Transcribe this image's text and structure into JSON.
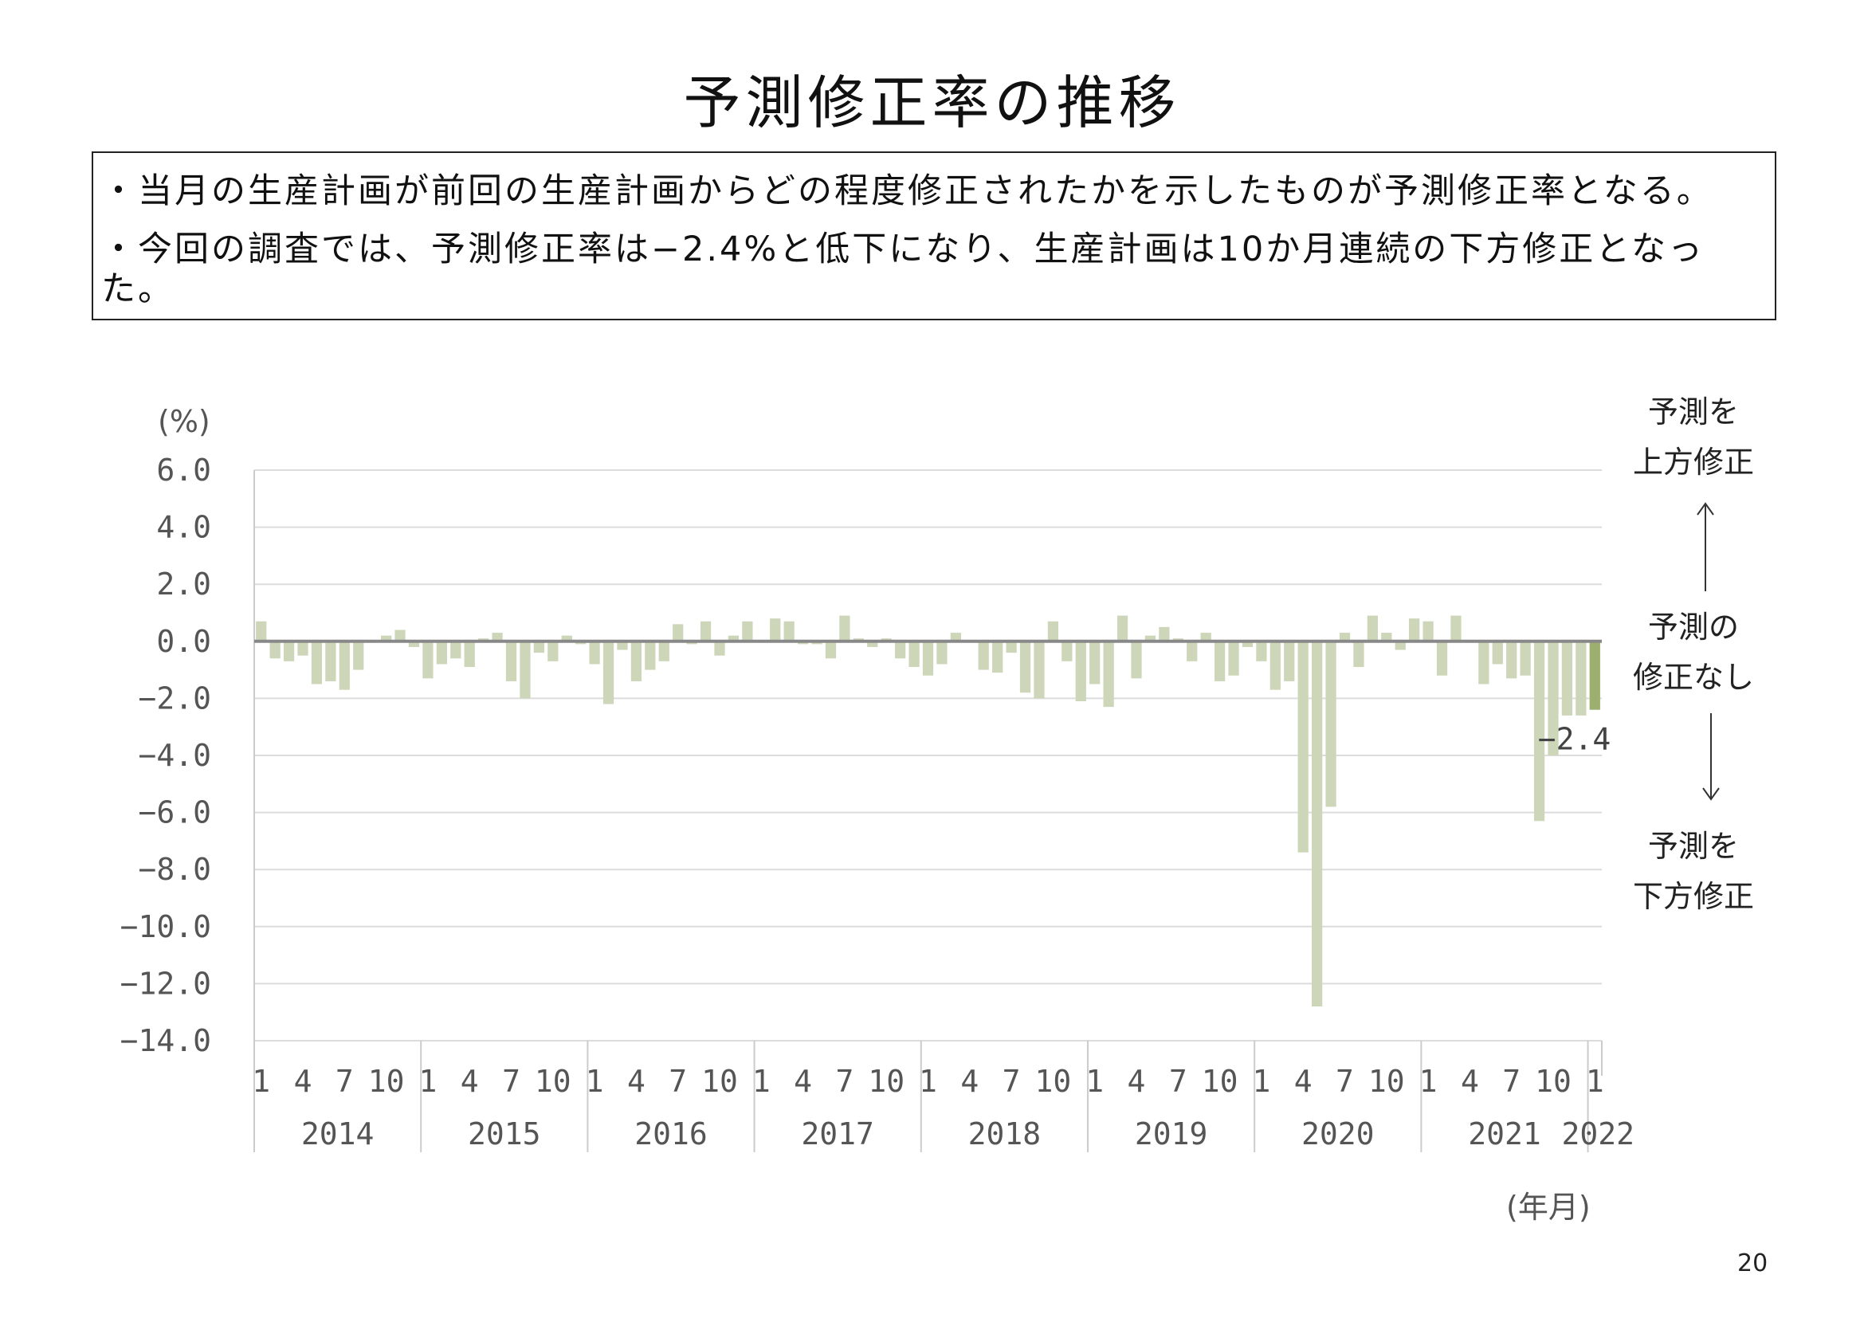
{
  "slide": {
    "title": "予測修正率の推移",
    "notes": [
      "・当月の生産計画が前回の生産計画からどの程度修正されたかを示したものが予測修正率となる。",
      "・今回の調査では、予測修正率は−2.4%と低下になり、生産計画は10か月連続の下方修正となった。"
    ],
    "page_number": "20"
  },
  "annotations": {
    "up": [
      "予測を",
      "上方修正"
    ],
    "none": [
      "予測の",
      "修正なし"
    ],
    "down": [
      "予測を",
      "下方修正"
    ],
    "up_arrow": "arrow-up-icon",
    "down_arrow": "arrow-down-icon"
  },
  "chart_data": {
    "type": "bar",
    "y_unit_label": "(%)",
    "x_unit_label": "(年月)",
    "ylim": [
      -14,
      6
    ],
    "yticks": [
      6,
      4,
      2,
      0,
      -2,
      -4,
      -6,
      -8,
      -10,
      -12,
      -14
    ],
    "ytick_labels": [
      "6.0",
      "4.0",
      "2.0",
      "0.0",
      "−2.0",
      "−4.0",
      "−6.0",
      "−8.0",
      "−10.0",
      "−12.0",
      "−14.0"
    ],
    "grid": true,
    "month_tick_labels": [
      "1",
      "4",
      "7",
      "10"
    ],
    "years": [
      "2014",
      "2015",
      "2016",
      "2017",
      "2018",
      "2019",
      "2020",
      "2021",
      "2022"
    ],
    "series": [
      {
        "values": [
          0.7,
          -0.6,
          -0.7,
          -0.5,
          -1.5,
          -1.4,
          -1.7,
          -1.0,
          0.0,
          0.2,
          0.4,
          -0.2,
          -1.3,
          -0.8,
          -0.6,
          -0.9,
          0.1,
          0.3,
          -1.4,
          -2.0,
          -0.4,
          -0.7,
          0.2,
          -0.1,
          -0.8,
          -2.2,
          -0.3,
          -1.4,
          -1.0,
          -0.7,
          0.6,
          -0.1,
          0.7,
          -0.5,
          0.2,
          0.7,
          0.0,
          0.8,
          0.7,
          -0.1,
          -0.1,
          -0.6,
          0.9,
          0.1,
          -0.2,
          0.1,
          -0.6,
          -0.9,
          -1.2,
          -0.8,
          0.3,
          0.0,
          -1.0,
          -1.1,
          -0.4,
          -1.8,
          -2.0,
          0.7,
          -0.7,
          -2.1,
          -1.5,
          -2.3,
          0.9,
          -1.3,
          0.2,
          0.5,
          0.1,
          -0.7,
          0.3,
          -1.4,
          -1.2,
          -0.2,
          -0.7,
          -1.7,
          -1.4,
          -7.4,
          -12.8,
          -5.8,
          0.3,
          -0.9,
          0.9,
          0.3,
          -0.3,
          0.8,
          0.7,
          -1.2,
          0.9,
          0.0,
          -1.5,
          -0.8,
          -1.3,
          -1.2,
          -6.3,
          -4.0,
          -2.6,
          -2.6,
          -2.4
        ]
      }
    ],
    "last_value_label": "−2.4",
    "bar_color": "#cdd6b9",
    "last_bar_color": "#9caf6e",
    "axis_color": "#888888",
    "grid_color": "#dcdcdc"
  }
}
